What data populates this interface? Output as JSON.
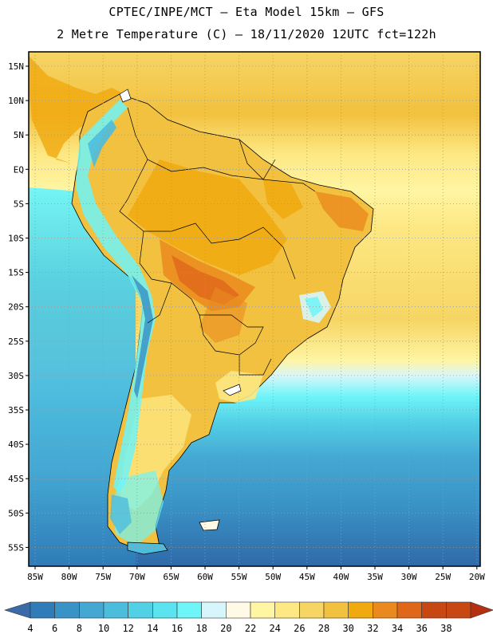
{
  "header": {
    "title_line1": "CPTEC/INPE/MCT –  Eta Model 15km – GFS",
    "title_line2": "2 Metre Temperature (C) – 18/11/2020 12UTC fct=122h"
  },
  "map": {
    "lat_labels": [
      "15N",
      "10N",
      "5N",
      "EQ",
      "5S",
      "10S",
      "15S",
      "20S",
      "25S",
      "30S",
      "35S",
      "40S",
      "45S",
      "50S",
      "55S"
    ],
    "lon_labels": [
      "85W",
      "80W",
      "75W",
      "70W",
      "65W",
      "60W",
      "55W",
      "50W",
      "45W",
      "40W",
      "35W",
      "30W",
      "25W",
      "20W"
    ],
    "grid": "dotted"
  },
  "colorbar": {
    "ticks": [
      "4",
      "6",
      "8",
      "10",
      "12",
      "14",
      "16",
      "18",
      "20",
      "22",
      "24",
      "26",
      "28",
      "30",
      "32",
      "34",
      "36",
      "38"
    ],
    "colors": [
      "#3a6aa8",
      "#2f7cb8",
      "#3a93c6",
      "#44a8d3",
      "#4dbdde",
      "#52d0e6",
      "#5be3ef",
      "#6ef5f8",
      "#d7f6fb",
      "#fffae6",
      "#fff5a3",
      "#fde884",
      "#f6d564",
      "#f2c13f",
      "#f0a90f",
      "#ea8a1e",
      "#e0661a",
      "#c84814",
      "#b33010"
    ]
  }
}
